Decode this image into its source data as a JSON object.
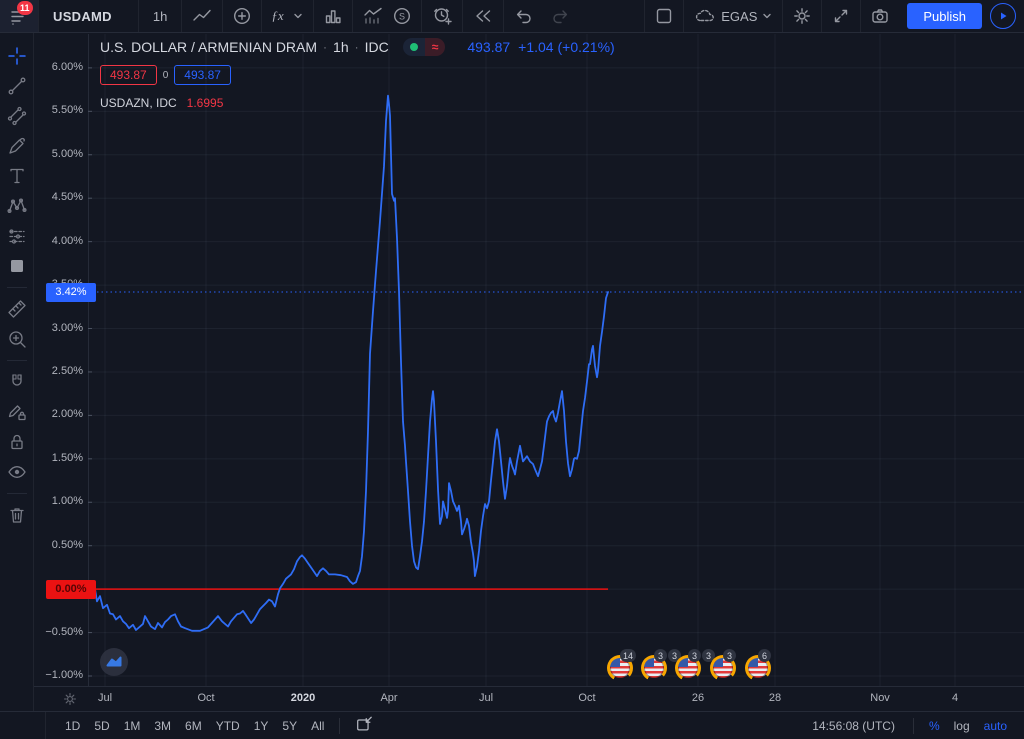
{
  "colors": {
    "accent_blue": "#2962ff",
    "line_blue": "#2f6df5",
    "red": "#f23645",
    "baseline_red": "#eb1212",
    "green_dot": "#1fbf75",
    "background": "#131722"
  },
  "topbar": {
    "menu_badge": "11",
    "symbol": "USDAMD",
    "interval": "1h",
    "fx_label": "ƒx",
    "s_label": "S",
    "broker": "EGAS",
    "publish": "Publish"
  },
  "legend": {
    "title": "U.S. DOLLAR / ARMENIAN DRAM",
    "sep1": "·",
    "interval": "1h",
    "sep2": "·",
    "source": "IDC",
    "status_approx": "≈",
    "price": "493.87",
    "change": "+1.04 (+0.21%)",
    "bid": "493.87",
    "spread": "0",
    "ask": "493.87",
    "overlay_symbol": "USDAZN, IDC",
    "overlay_value": "1.6995"
  },
  "price_scale": {
    "current_label": "3.42%",
    "base_label": "0.00%",
    "ticks": [
      "6.00%",
      "5.50%",
      "5.00%",
      "4.50%",
      "4.00%",
      "3.50%",
      "3.00%",
      "2.50%",
      "2.00%",
      "1.50%",
      "1.00%",
      "0.50%",
      "0.00%",
      "−0.50%",
      "−1.00%"
    ]
  },
  "time_scale": {
    "labels": [
      {
        "text": "Jul",
        "x": 0.0182
      },
      {
        "text": "Oct",
        "x": 0.1261
      },
      {
        "text": "2020",
        "x": 0.2297,
        "bold": true
      },
      {
        "text": "Apr",
        "x": 0.3216
      },
      {
        "text": "Jul",
        "x": 0.4252
      },
      {
        "text": "Oct",
        "x": 0.5331
      },
      {
        "text": "26",
        "x": 0.6517
      },
      {
        "text": "28",
        "x": 0.734
      },
      {
        "text": "Nov",
        "x": 0.8462
      },
      {
        "text": "4",
        "x": 0.9263
      }
    ]
  },
  "chart_data": {
    "type": "line",
    "title": "U.S. DOLLAR / ARMENIAN DRAM percent change, 1h, IDC",
    "unit": "percent",
    "ylim": [
      -1.115,
      6.39
    ],
    "y_ticks": [
      6,
      5.5,
      5,
      4.5,
      4,
      3.5,
      3,
      2.5,
      2,
      1.5,
      1,
      0.5,
      0,
      -0.5,
      -1
    ],
    "baseline_value": 0,
    "baseline_end_x": 0.5556,
    "current_value": 3.42,
    "grid": true,
    "points": [
      [
        0.0075,
        0.0
      ],
      [
        0.0096,
        -0.14
      ],
      [
        0.0128,
        -0.08
      ],
      [
        0.016,
        -0.22
      ],
      [
        0.0203,
        -0.18
      ],
      [
        0.0235,
        -0.28
      ],
      [
        0.0267,
        -0.29
      ],
      [
        0.0299,
        -0.35
      ],
      [
        0.0342,
        -0.31
      ],
      [
        0.0374,
        -0.37
      ],
      [
        0.0406,
        -0.4
      ],
      [
        0.0438,
        -0.45
      ],
      [
        0.0481,
        -0.41
      ],
      [
        0.0513,
        -0.47
      ],
      [
        0.0545,
        -0.44
      ],
      [
        0.0588,
        -0.4
      ],
      [
        0.0609,
        -0.31
      ],
      [
        0.0641,
        -0.37
      ],
      [
        0.0673,
        -0.43
      ],
      [
        0.0716,
        -0.46
      ],
      [
        0.0748,
        -0.39
      ],
      [
        0.0791,
        -0.44
      ],
      [
        0.0823,
        -0.38
      ],
      [
        0.0855,
        -0.35
      ],
      [
        0.0887,
        -0.31
      ],
      [
        0.0929,
        -0.29
      ],
      [
        0.0962,
        -0.37
      ],
      [
        0.0994,
        -0.43
      ],
      [
        0.1037,
        -0.45
      ],
      [
        0.1111,
        -0.48
      ],
      [
        0.1197,
        -0.48
      ],
      [
        0.1282,
        -0.44
      ],
      [
        0.1357,
        -0.35
      ],
      [
        0.1389,
        -0.31
      ],
      [
        0.1432,
        -0.37
      ],
      [
        0.1496,
        -0.43
      ],
      [
        0.1528,
        -0.37
      ],
      [
        0.1592,
        -0.29
      ],
      [
        0.1624,
        -0.28
      ],
      [
        0.1656,
        -0.25
      ],
      [
        0.1688,
        -0.3
      ],
      [
        0.1742,
        -0.39
      ],
      [
        0.1774,
        -0.35
      ],
      [
        0.1838,
        -0.23
      ],
      [
        0.1902,
        -0.16
      ],
      [
        0.1934,
        -0.12
      ],
      [
        0.1966,
        -0.14
      ],
      [
        0.1998,
        -0.2
      ],
      [
        0.203,
        -0.06
      ],
      [
        0.2051,
        0.01
      ],
      [
        0.2083,
        0.06
      ],
      [
        0.2115,
        0.12
      ],
      [
        0.2169,
        0.17
      ],
      [
        0.2201,
        0.23
      ],
      [
        0.2233,
        0.32
      ],
      [
        0.2265,
        0.37
      ],
      [
        0.2286,
        0.39
      ],
      [
        0.2318,
        0.35
      ],
      [
        0.235,
        0.3
      ],
      [
        0.2382,
        0.25
      ],
      [
        0.2415,
        0.2
      ],
      [
        0.2447,
        0.15
      ],
      [
        0.2479,
        0.21
      ],
      [
        0.2511,
        0.24
      ],
      [
        0.2543,
        0.21
      ],
      [
        0.2575,
        0.17
      ],
      [
        0.2639,
        0.17
      ],
      [
        0.2703,
        0.16
      ],
      [
        0.2767,
        0.14
      ],
      [
        0.2799,
        0.09
      ],
      [
        0.2831,
        0.06
      ],
      [
        0.2863,
        0.08
      ],
      [
        0.2885,
        0.15
      ],
      [
        0.2906,
        0.21
      ],
      [
        0.2927,
        0.38
      ],
      [
        0.2949,
        0.67
      ],
      [
        0.297,
        1.13
      ],
      [
        0.2991,
        1.82
      ],
      [
        0.3013,
        2.71
      ],
      [
        0.3045,
        3.2
      ],
      [
        0.3077,
        3.66
      ],
      [
        0.312,
        4.24
      ],
      [
        0.3162,
        4.87
      ],
      [
        0.3184,
        5.39
      ],
      [
        0.3205,
        5.68
      ],
      [
        0.3216,
        5.58
      ],
      [
        0.3226,
        5.45
      ],
      [
        0.3248,
        4.55
      ],
      [
        0.3269,
        4.47
      ],
      [
        0.328,
        4.5
      ],
      [
        0.3301,
        4.04
      ],
      [
        0.3323,
        3.43
      ],
      [
        0.3344,
        2.62
      ],
      [
        0.3365,
        1.93
      ],
      [
        0.3387,
        1.65
      ],
      [
        0.3397,
        1.47
      ],
      [
        0.3419,
        1.13
      ],
      [
        0.344,
        0.78
      ],
      [
        0.3462,
        0.5
      ],
      [
        0.3483,
        0.32
      ],
      [
        0.3504,
        0.25
      ],
      [
        0.3526,
        0.23
      ],
      [
        0.3547,
        0.38
      ],
      [
        0.3568,
        0.55
      ],
      [
        0.359,
        0.78
      ],
      [
        0.3611,
        1.13
      ],
      [
        0.3632,
        1.53
      ],
      [
        0.3654,
        1.93
      ],
      [
        0.3675,
        2.19
      ],
      [
        0.3686,
        2.28
      ],
      [
        0.3697,
        2.16
      ],
      [
        0.3718,
        1.7
      ],
      [
        0.374,
        1.13
      ],
      [
        0.3761,
        0.75
      ],
      [
        0.3782,
        0.84
      ],
      [
        0.3793,
        1.01
      ],
      [
        0.3814,
        0.92
      ],
      [
        0.3836,
        0.82
      ],
      [
        0.3846,
        0.9
      ],
      [
        0.3857,
        1.22
      ],
      [
        0.3878,
        1.13
      ],
      [
        0.39,
        1.01
      ],
      [
        0.3921,
        0.96
      ],
      [
        0.3942,
        0.9
      ],
      [
        0.3964,
        0.96
      ],
      [
        0.3985,
        0.78
      ],
      [
        0.3996,
        0.63
      ],
      [
        0.4017,
        0.69
      ],
      [
        0.4038,
        0.76
      ],
      [
        0.4049,
        0.81
      ],
      [
        0.407,
        0.73
      ],
      [
        0.4091,
        0.55
      ],
      [
        0.4113,
        0.41
      ],
      [
        0.4124,
        0.32
      ],
      [
        0.4134,
        0.15
      ],
      [
        0.4156,
        0.26
      ],
      [
        0.4177,
        0.44
      ],
      [
        0.4199,
        0.67
      ],
      [
        0.422,
        0.84
      ],
      [
        0.4241,
        0.98
      ],
      [
        0.4263,
        0.93
      ],
      [
        0.4284,
        1.01
      ],
      [
        0.4305,
        1.24
      ],
      [
        0.4327,
        1.47
      ],
      [
        0.4348,
        1.7
      ],
      [
        0.437,
        1.84
      ],
      [
        0.4391,
        1.7
      ],
      [
        0.4412,
        1.47
      ],
      [
        0.4434,
        1.24
      ],
      [
        0.4455,
        1.04
      ],
      [
        0.4477,
        1.19
      ],
      [
        0.4498,
        1.42
      ],
      [
        0.4509,
        1.51
      ],
      [
        0.453,
        1.42
      ],
      [
        0.4551,
        1.36
      ],
      [
        0.4562,
        1.32
      ],
      [
        0.4583,
        1.47
      ],
      [
        0.4605,
        1.59
      ],
      [
        0.4615,
        1.65
      ],
      [
        0.4637,
        1.53
      ],
      [
        0.4647,
        1.47
      ],
      [
        0.469,
        1.53
      ],
      [
        0.4722,
        1.47
      ],
      [
        0.4754,
        1.44
      ],
      [
        0.4776,
        1.38
      ],
      [
        0.4808,
        1.3
      ],
      [
        0.4829,
        1.38
      ],
      [
        0.485,
        1.47
      ],
      [
        0.4872,
        1.65
      ],
      [
        0.4893,
        1.84
      ],
      [
        0.4904,
        1.93
      ],
      [
        0.4925,
        1.99
      ],
      [
        0.4947,
        2.03
      ],
      [
        0.4968,
        2.05
      ],
      [
        0.4979,
        1.99
      ],
      [
        0.5,
        1.93
      ],
      [
        0.5021,
        2.03
      ],
      [
        0.5043,
        2.16
      ],
      [
        0.5064,
        2.28
      ],
      [
        0.5085,
        2.05
      ],
      [
        0.5107,
        1.7
      ],
      [
        0.5128,
        1.45
      ],
      [
        0.515,
        1.3
      ],
      [
        0.5171,
        1.38
      ],
      [
        0.5192,
        1.5
      ],
      [
        0.5203,
        1.51
      ],
      [
        0.5224,
        1.5
      ],
      [
        0.5246,
        1.59
      ],
      [
        0.5267,
        1.82
      ],
      [
        0.5288,
        2.05
      ],
      [
        0.531,
        2.2
      ],
      [
        0.5331,
        2.39
      ],
      [
        0.5353,
        2.59
      ],
      [
        0.5363,
        2.59
      ],
      [
        0.5385,
        2.76
      ],
      [
        0.5395,
        2.8
      ],
      [
        0.5406,
        2.68
      ],
      [
        0.5417,
        2.57
      ],
      [
        0.5438,
        2.44
      ],
      [
        0.5449,
        2.51
      ],
      [
        0.547,
        2.8
      ],
      [
        0.5492,
        2.97
      ],
      [
        0.5513,
        3.14
      ],
      [
        0.5534,
        3.35
      ],
      [
        0.5556,
        3.42
      ]
    ]
  },
  "markers": {
    "flags": [
      {
        "badges": [
          "14"
        ]
      },
      {
        "badges": [
          "3",
          "3"
        ]
      },
      {
        "badges": [
          "3",
          "3"
        ]
      },
      {
        "badges": [
          "3"
        ]
      },
      {
        "badges": [
          "6"
        ]
      }
    ]
  },
  "footer": {
    "ranges": [
      "1D",
      "5D",
      "1M",
      "3M",
      "6M",
      "YTD",
      "1Y",
      "5Y",
      "All"
    ],
    "clock": "14:56:08 (UTC)",
    "percent": "%",
    "log": "log",
    "auto": "auto"
  }
}
